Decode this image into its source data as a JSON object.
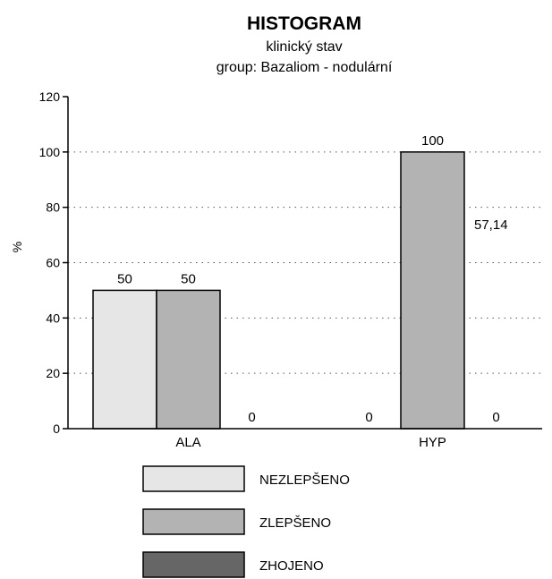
{
  "chart_data": {
    "type": "bar",
    "title": "HISTOGRAM",
    "subtitle": "klinický  stav",
    "subtitle2": "group: Bazaliom - nodulární",
    "ylabel": "%",
    "ylim": [
      0,
      120
    ],
    "yticks": [
      "0",
      "20",
      "40",
      "60",
      "80",
      "100",
      "120"
    ],
    "grid": true,
    "categories": [
      "ALA",
      "HYP"
    ],
    "series": [
      {
        "name": "NEZLEPŠENO",
        "values": [
          50,
          0
        ],
        "labels": [
          "50",
          "0"
        ],
        "color": "#e6e6e6"
      },
      {
        "name": "ZLEPŠENO",
        "values": [
          50,
          100
        ],
        "labels": [
          "50",
          "100"
        ],
        "color": "#b3b3b3"
      },
      {
        "name": "ZHOJENO",
        "values": [
          0,
          0
        ],
        "labels": [
          "0",
          "0"
        ],
        "color": "#666666"
      }
    ],
    "annotations": [
      "57,14"
    ],
    "legend_position": "bottom"
  }
}
